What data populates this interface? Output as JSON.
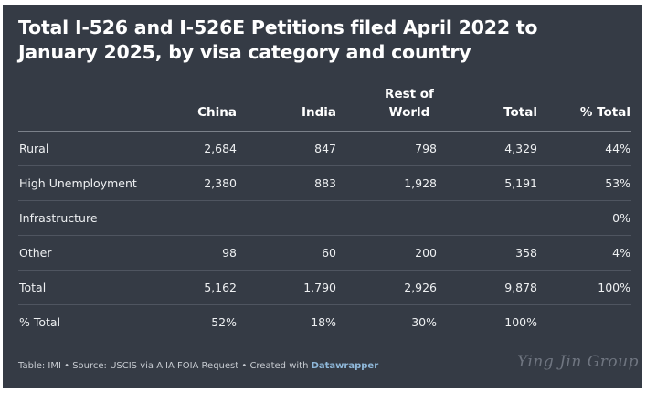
{
  "title": "Total I-526 and I-526E Petitions filed April 2022 to January 2025, by visa category and country",
  "table": {
    "headers": [
      "",
      "China",
      "India",
      "Rest of World",
      "Total",
      "% Total"
    ],
    "rows": [
      [
        "Rural",
        "2,684",
        "847",
        "798",
        "4,329",
        "44%"
      ],
      [
        "High Unemployment",
        "2,380",
        "883",
        "1,928",
        "5,191",
        "53%"
      ],
      [
        "Infrastructure",
        "",
        "",
        "",
        "",
        "0%"
      ],
      [
        "Other",
        "98",
        "60",
        "200",
        "358",
        "4%"
      ],
      [
        "Total",
        "5,162",
        "1,790",
        "2,926",
        "9,878",
        "100%"
      ],
      [
        "% Total",
        "52%",
        "18%",
        "30%",
        "100%",
        ""
      ]
    ]
  },
  "footer": {
    "prefix": "Table: IMI • Source: USCIS via AIIA FOIA Request • Created with ",
    "brand": "Datawrapper"
  },
  "watermark": "Ying Jin Group"
}
